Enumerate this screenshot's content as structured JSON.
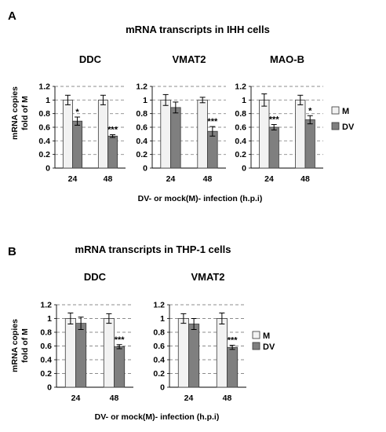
{
  "panels": [
    {
      "letter": "A",
      "title": "mRNA transcripts in IHH cells",
      "ylabel_line1": "mRNA copies",
      "ylabel_line2": "fold of M",
      "xlabel": "DV- or mock(M)- infection (h.p.i)",
      "legend": [
        {
          "label": "M",
          "color": "#f2f2f2"
        },
        {
          "label": "DV",
          "color": "#7f7f7f"
        }
      ]
    },
    {
      "letter": "B",
      "title": "mRNA transcripts in THP-1 cells",
      "ylabel_line1": "mRNA copies",
      "ylabel_line2": "fold of M",
      "xlabel": "DV- or mock(M)- infection (h.p.i)",
      "legend": [
        {
          "label": "M",
          "color": "#f2f2f2"
        },
        {
          "label": "DV",
          "color": "#7f7f7f"
        }
      ]
    }
  ],
  "chart_data": [
    {
      "panel": "A",
      "type": "bar",
      "title": "DDC",
      "categories": [
        "24",
        "48"
      ],
      "ylim": [
        0,
        1.2
      ],
      "yticks": [
        "0",
        "0.2",
        "0.4",
        "0.6",
        "0.8",
        "1",
        "1.2"
      ],
      "grid": true,
      "series": [
        {
          "name": "M",
          "values": [
            1.0,
            1.0
          ],
          "errors": [
            0.07,
            0.07
          ]
        },
        {
          "name": "DV",
          "values": [
            0.69,
            0.47
          ],
          "errors": [
            0.06,
            0.02
          ]
        }
      ],
      "annotations": [
        "*",
        "***"
      ]
    },
    {
      "panel": "A",
      "type": "bar",
      "title": "VMAT2",
      "categories": [
        "24",
        "48"
      ],
      "ylim": [
        0,
        1.2
      ],
      "yticks": [
        "0",
        "0.2",
        "0.4",
        "0.6",
        "0.8",
        "1",
        "1.2"
      ],
      "grid": true,
      "series": [
        {
          "name": "M",
          "values": [
            1.0,
            1.0
          ],
          "errors": [
            0.08,
            0.04
          ]
        },
        {
          "name": "DV",
          "values": [
            0.89,
            0.54
          ],
          "errors": [
            0.08,
            0.07
          ]
        }
      ],
      "annotations": [
        "",
        "***"
      ]
    },
    {
      "panel": "A",
      "type": "bar",
      "title": "MAO-B",
      "categories": [
        "24",
        "48"
      ],
      "ylim": [
        0,
        1.2
      ],
      "yticks": [
        "0",
        "0.2",
        "0.4",
        "0.6",
        "0.8",
        "1",
        "1.2"
      ],
      "grid": true,
      "series": [
        {
          "name": "M",
          "values": [
            1.0,
            1.0
          ],
          "errors": [
            0.09,
            0.07
          ]
        },
        {
          "name": "DV",
          "values": [
            0.6,
            0.71
          ],
          "errors": [
            0.04,
            0.06
          ]
        }
      ],
      "annotations": [
        "***",
        "*"
      ]
    },
    {
      "panel": "B",
      "type": "bar",
      "title": "DDC",
      "categories": [
        "24",
        "48"
      ],
      "ylim": [
        0,
        1.2
      ],
      "yticks": [
        "0",
        "0.2",
        "0.4",
        "0.6",
        "0.8",
        "1",
        "1.2"
      ],
      "grid": true,
      "series": [
        {
          "name": "M",
          "values": [
            1.0,
            1.0
          ],
          "errors": [
            0.08,
            0.07
          ]
        },
        {
          "name": "DV",
          "values": [
            0.93,
            0.59
          ],
          "errors": [
            0.09,
            0.03
          ]
        }
      ],
      "annotations": [
        "",
        "***"
      ]
    },
    {
      "panel": "B",
      "type": "bar",
      "title": "VMAT2",
      "categories": [
        "24",
        "48"
      ],
      "ylim": [
        0,
        1.2
      ],
      "yticks": [
        "0",
        "0.2",
        "0.4",
        "0.6",
        "0.8",
        "1",
        "1.2"
      ],
      "grid": true,
      "series": [
        {
          "name": "M",
          "values": [
            1.0,
            1.0
          ],
          "errors": [
            0.07,
            0.08
          ]
        },
        {
          "name": "DV",
          "values": [
            0.92,
            0.58
          ],
          "errors": [
            0.08,
            0.03
          ]
        }
      ],
      "annotations": [
        "",
        "***"
      ]
    }
  ]
}
